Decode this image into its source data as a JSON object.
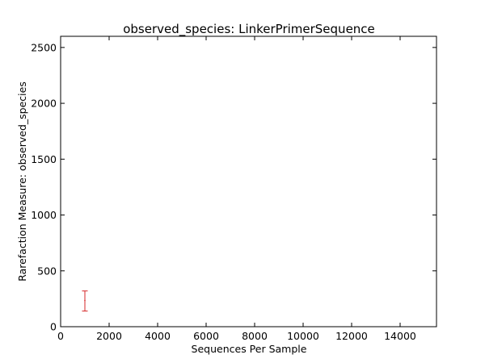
{
  "chart_data": {
    "type": "scatter",
    "title": "observed_species: LinkerPrimerSequence",
    "xlabel": "Sequences Per Sample",
    "ylabel": "Rarefaction Measure: observed_species",
    "xlim": [
      0,
      15500
    ],
    "ylim": [
      0,
      2600
    ],
    "x_ticks": [
      0,
      2000,
      4000,
      6000,
      8000,
      10000,
      12000,
      14000
    ],
    "y_ticks": [
      0,
      500,
      1000,
      1500,
      2000,
      2500
    ],
    "grid": false,
    "series": [
      {
        "color": "#d62728",
        "points": [
          {
            "x": 1000,
            "y": 235,
            "y_low": 140,
            "y_high": 320
          }
        ]
      }
    ]
  }
}
